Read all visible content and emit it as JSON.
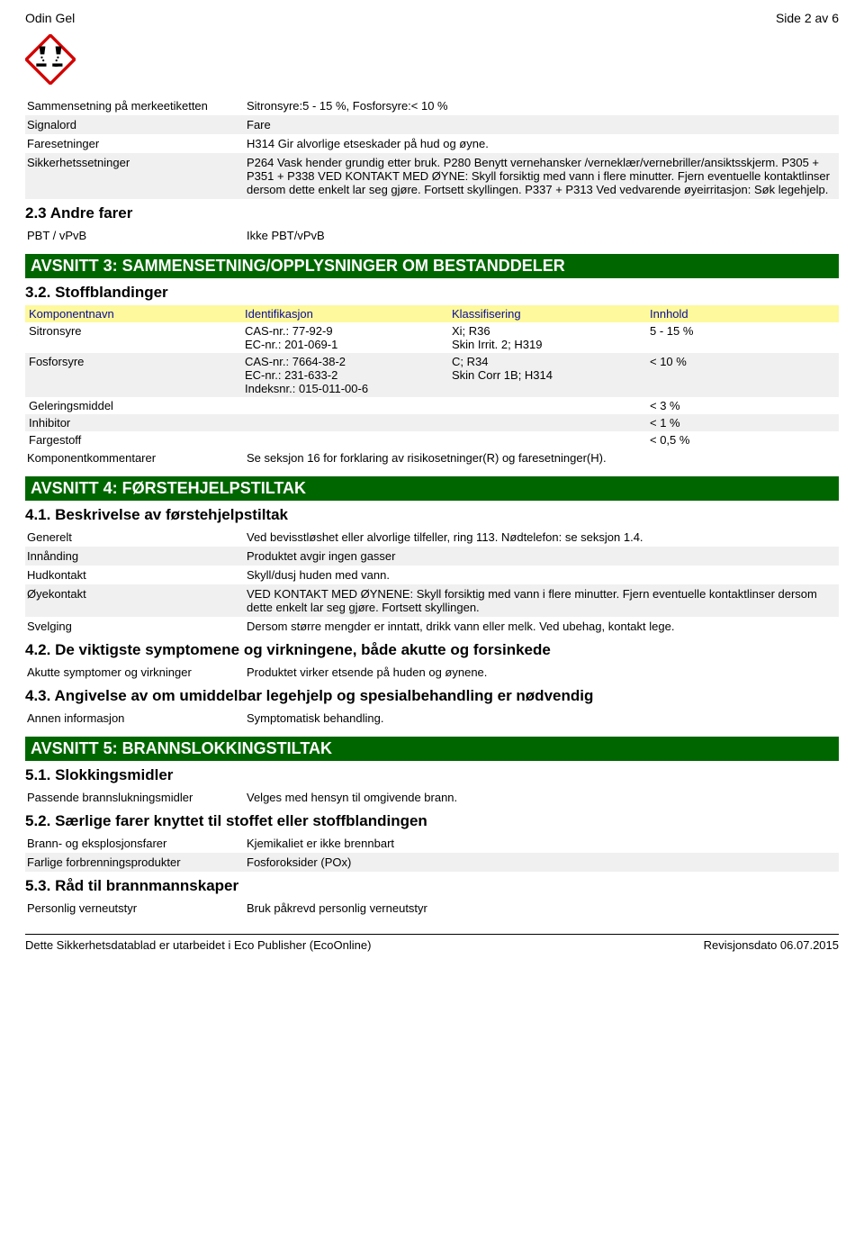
{
  "header": {
    "product": "Odin Gel",
    "page": "Side 2 av 6"
  },
  "section2_rows": [
    {
      "key": "Sammensetning på merkeetiketten",
      "val": "Sitronsyre:5 - 15 %, Fosforsyre:< 10 %",
      "shaded": false
    },
    {
      "key": "Signalord",
      "val": "Fare",
      "shaded": true
    },
    {
      "key": "Faresetninger",
      "val": "H314 Gir alvorlige etseskader på hud og øyne.",
      "shaded": false
    },
    {
      "key": "Sikkerhetssetninger",
      "val": "P264 Vask hender grundig etter bruk. P280 Benytt vernehansker /verneklær/vernebriller/ansiktsskjerm. P305 + P351 + P338 VED KONTAKT MED ØYNE: Skyll forsiktig med vann i flere minutter. Fjern eventuelle kontaktlinser dersom dette enkelt lar seg gjøre. Fortsett skyllingen. P337 + P313 Ved vedvarende øyeirritasjon: Søk legehjelp.",
      "shaded": true
    }
  ],
  "section2_sub": "2.3 Andre farer",
  "section2_sub_rows": [
    {
      "key": "PBT / vPvB",
      "val": "Ikke PBT/vPvB",
      "shaded": false
    }
  ],
  "section3": {
    "banner": "AVSNITT 3: SAMMENSETNING/OPPLYSNINGER OM BESTANDDELER",
    "sub": "3.2. Stoffblandinger",
    "columns": [
      "Komponentnavn",
      "Identifikasjon",
      "Klassifisering",
      "Innhold"
    ],
    "rows": [
      {
        "name": "Sitronsyre",
        "id": "CAS-nr.: 77-92-9\nEC-nr.: 201-069-1",
        "cls": "Xi; R36\nSkin Irrit. 2; H319",
        "content": "5 - 15 %",
        "shaded": false
      },
      {
        "name": "Fosforsyre",
        "id": "CAS-nr.: 7664-38-2\nEC-nr.: 231-633-2\nIndeksnr.: 015-011-00-6",
        "cls": "C; R34\nSkin Corr 1B; H314",
        "content": "< 10 %",
        "shaded": true
      },
      {
        "name": "Geleringsmiddel",
        "id": "",
        "cls": "",
        "content": "< 3 %",
        "shaded": false
      },
      {
        "name": "Inhibitor",
        "id": "",
        "cls": "",
        "content": "< 1 %",
        "shaded": true
      },
      {
        "name": "Fargestoff",
        "id": "",
        "cls": "",
        "content": "< 0,5 %",
        "shaded": false
      }
    ],
    "comment_row": {
      "key": "Komponentkommentarer",
      "val": "Se seksjon 16 for forklaring av risikosetninger(R) og faresetninger(H)."
    }
  },
  "section4": {
    "banner": "AVSNITT 4: FØRSTEHJELPSTILTAK",
    "sub1": "4.1. Beskrivelse av førstehjelpstiltak",
    "rows1": [
      {
        "key": "Generelt",
        "val": "Ved bevisstløshet eller alvorlige tilfeller, ring 113. Nødtelefon: se seksjon 1.4.",
        "shaded": false
      },
      {
        "key": "Innånding",
        "val": "Produktet avgir ingen gasser",
        "shaded": true
      },
      {
        "key": "Hudkontakt",
        "val": "Skyll/dusj huden med vann.",
        "shaded": false
      },
      {
        "key": "Øyekontakt",
        "val": "VED KONTAKT MED ØYNENE: Skyll forsiktig med vann i flere minutter. Fjern eventuelle kontaktlinser dersom dette enkelt lar seg gjøre. Fortsett skyllingen.",
        "shaded": true
      },
      {
        "key": "Svelging",
        "val": "Dersom større mengder er inntatt, drikk vann eller melk. Ved ubehag, kontakt lege.",
        "shaded": false
      }
    ],
    "sub2": "4.2. De viktigste symptomene og virkningene, både akutte og forsinkede",
    "rows2": [
      {
        "key": "Akutte symptomer og virkninger",
        "val": "Produktet virker etsende på huden og øynene.",
        "shaded": false
      }
    ],
    "sub3": "4.3. Angivelse av om umiddelbar legehjelp og spesialbehandling er nødvendig",
    "rows3": [
      {
        "key": "Annen informasjon",
        "val": "Symptomatisk behandling.",
        "shaded": false
      }
    ]
  },
  "section5": {
    "banner": "AVSNITT 5: BRANNSLOKKINGSTILTAK",
    "sub1": "5.1. Slokkingsmidler",
    "rows1": [
      {
        "key": "Passende brannslukningsmidler",
        "val": "Velges med hensyn til omgivende brann.",
        "shaded": false
      }
    ],
    "sub2": "5.2. Særlige farer knyttet til stoffet eller stoffblandingen",
    "rows2": [
      {
        "key": "Brann- og eksplosjonsfarer",
        "val": "Kjemikaliet er ikke brennbart",
        "shaded": false
      },
      {
        "key": "Farlige forbrenningsprodukter",
        "val": "Fosforoksider (POx)",
        "shaded": true
      }
    ],
    "sub3": "5.3. Råd til brannmannskaper",
    "rows3": [
      {
        "key": "Personlig verneutstyr",
        "val": "Bruk påkrevd personlig verneutstyr",
        "shaded": false
      }
    ]
  },
  "footer": {
    "left": "Dette Sikkerhetsdatablad er utarbeidet i Eco Publisher (EcoOnline)",
    "right": "Revisjonsdato 06.07.2015"
  }
}
